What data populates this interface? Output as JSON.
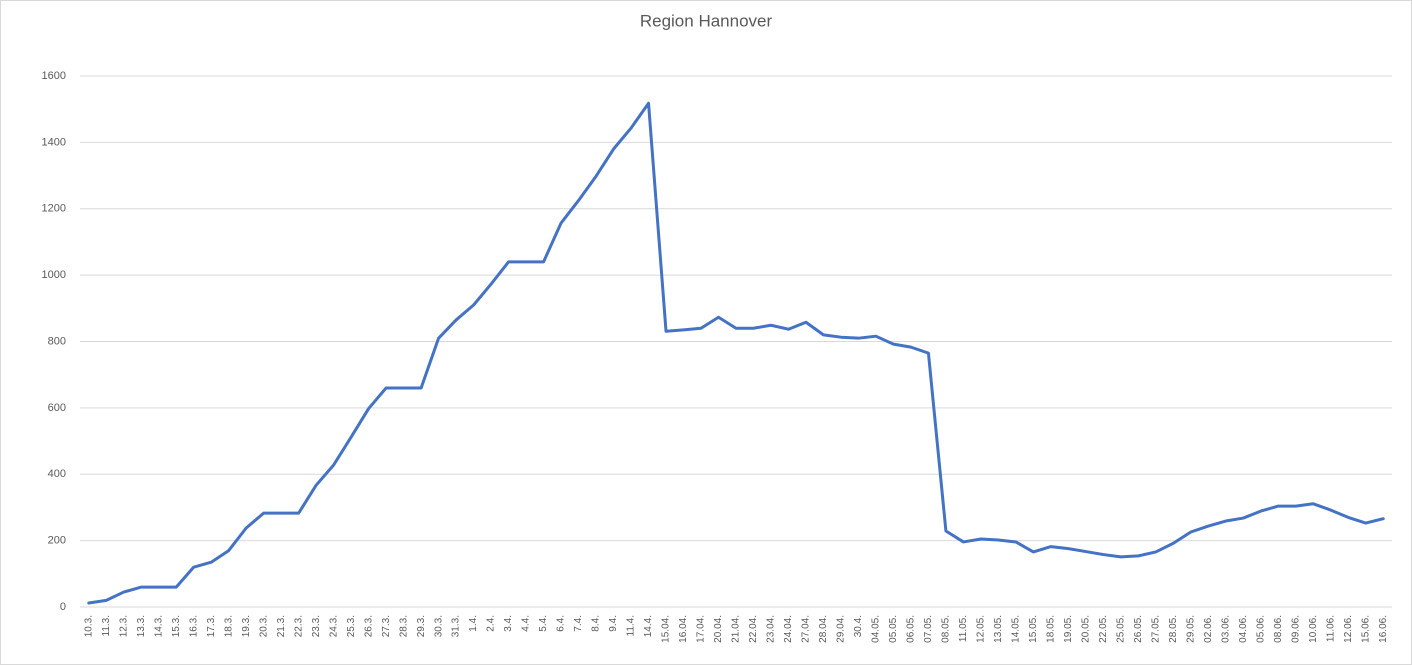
{
  "chart_data": {
    "type": "line",
    "title": "Region Hannover",
    "categories": [
      "10.3.",
      "11.3.",
      "12.3.",
      "13.3.",
      "14.3.",
      "15.3.",
      "16.3.",
      "17.3.",
      "18.3.",
      "19.3.",
      "20.3.",
      "21.3.",
      "22.3.",
      "23.3.",
      "24.3.",
      "25.3.",
      "26.3.",
      "27.3.",
      "28.3.",
      "29.3.",
      "30.3.",
      "31.3.",
      "1.4.",
      "2.4.",
      "3.4.",
      "4.4.",
      "5.4.",
      "6.4.",
      "7.4.",
      "8.4.",
      "9.4.",
      "11.4.",
      "14.4.",
      "15.04.",
      "16.04.",
      "17.04.",
      "20.04.",
      "21.04.",
      "22.04.",
      "23.04.",
      "24.04.",
      "27.04.",
      "28.04.",
      "29.04.",
      "30.4.",
      "04.05.",
      "05.05.",
      "06.05.",
      "07.05.",
      "08.05.",
      "11.05.",
      "12.05.",
      "13.05.",
      "14.05.",
      "15.05.",
      "18.05.",
      "19.05.",
      "20.05.",
      "22.05.",
      "25.05.",
      "26.05.",
      "27.05.",
      "28.05.",
      "29.05.",
      "02.06.",
      "03.06.",
      "04.06.",
      "05.06.",
      "08.06.",
      "09.06.",
      "10.06.",
      "11.06.",
      "12.06.",
      "15.06.",
      "16.06."
    ],
    "values": [
      12,
      20,
      45,
      60,
      60,
      60,
      120,
      135,
      170,
      238,
      283,
      283,
      283,
      367,
      428,
      512,
      598,
      660,
      660,
      660,
      810,
      865,
      910,
      973,
      1040,
      1040,
      1040,
      1157,
      1225,
      1298,
      1380,
      1443,
      1518,
      831,
      835,
      840,
      873,
      840,
      840,
      849,
      837,
      858,
      820,
      813,
      810,
      816,
      792,
      783,
      765,
      229,
      196,
      205,
      202,
      196,
      166,
      182,
      176,
      167,
      158,
      151,
      154,
      166,
      192,
      226,
      244,
      259,
      268,
      289,
      304,
      304,
      311,
      292,
      270,
      253,
      266
    ],
    "color": "#4472c4",
    "ylim": [
      0,
      1600
    ],
    "yticks": [
      0,
      200,
      400,
      600,
      800,
      1000,
      1200,
      1400,
      1600
    ],
    "grid": true
  }
}
